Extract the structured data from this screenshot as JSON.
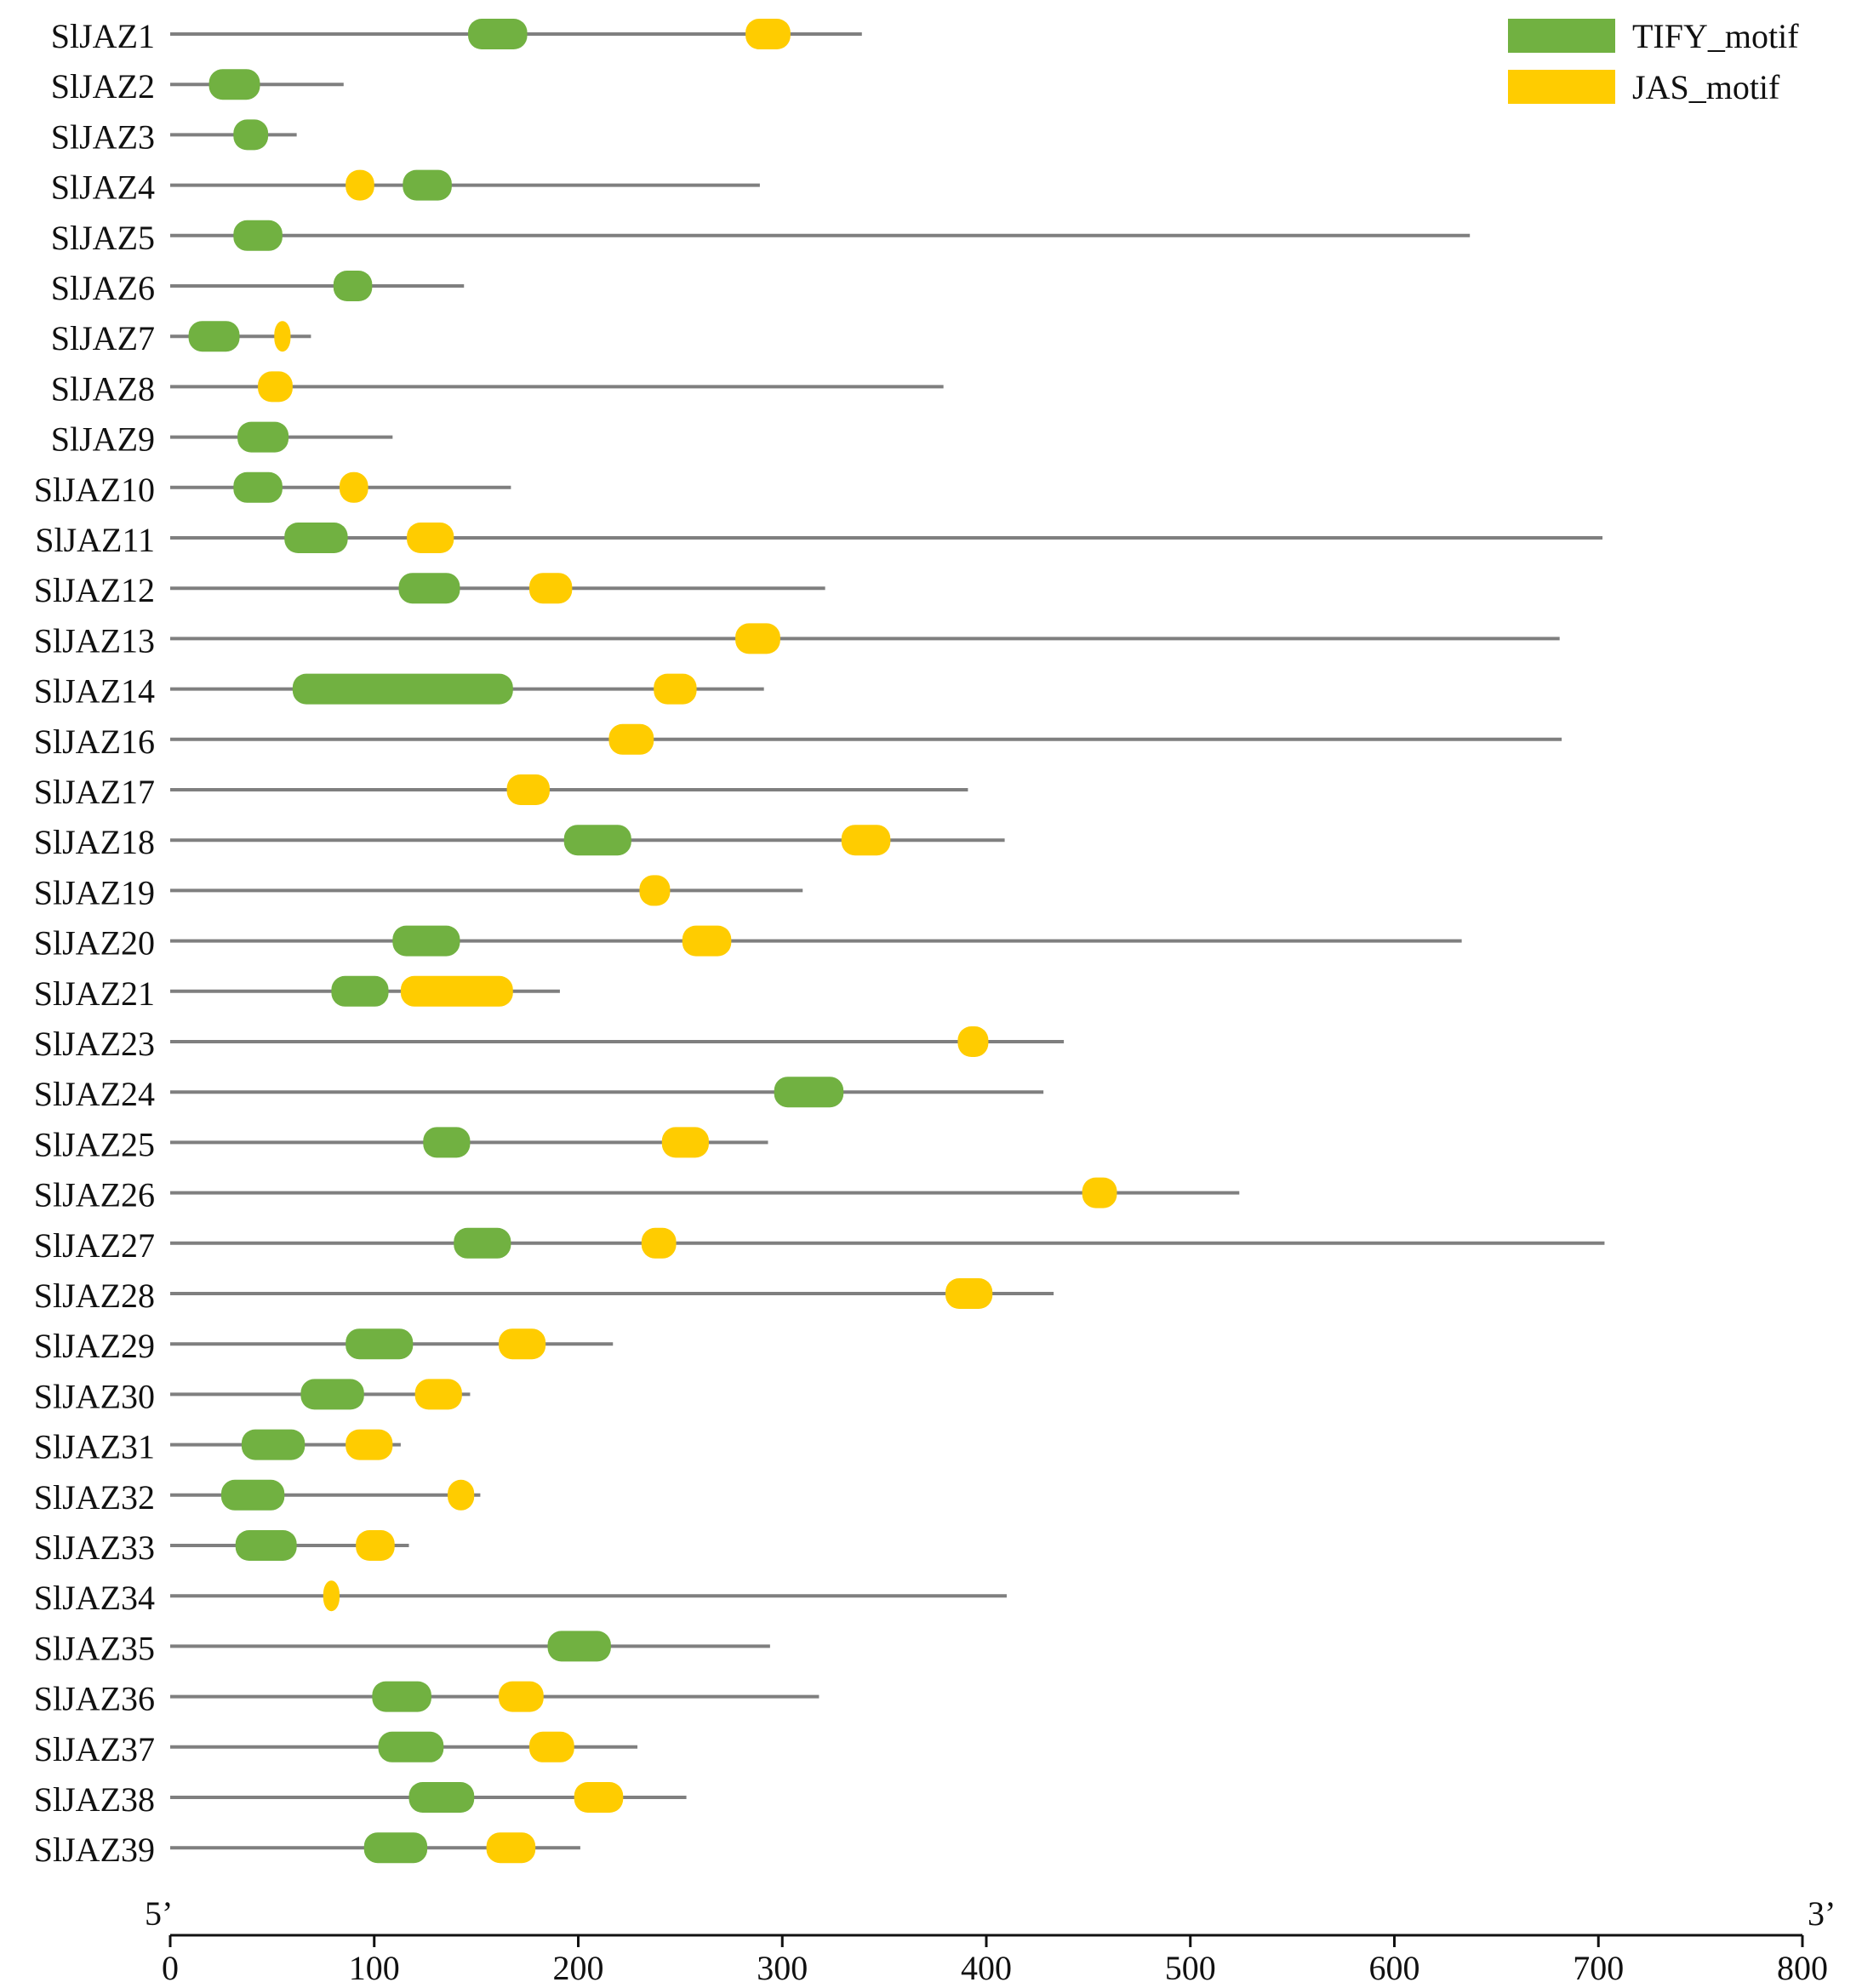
{
  "chart_data": {
    "type": "gene-structure",
    "xlim": [
      0,
      800
    ],
    "x_ticks": [
      0,
      100,
      200,
      300,
      400,
      500,
      600,
      700,
      800
    ],
    "end_labels": {
      "left": "5’",
      "right": "3’"
    },
    "legend": [
      {
        "key": "TIFY",
        "label": "TIFY_motif",
        "color": "#71b141"
      },
      {
        "key": "JAS",
        "label": "JAS_motif",
        "color": "#ffcc00"
      }
    ],
    "line_color": "#7f7f7f",
    "genes": [
      {
        "name": "SlJAZ1",
        "length": 339,
        "motifs": [
          {
            "type": "TIFY",
            "start": 146,
            "end": 175
          },
          {
            "type": "JAS",
            "start": 282,
            "end": 304
          }
        ]
      },
      {
        "name": "SlJAZ2",
        "length": 85,
        "motifs": [
          {
            "type": "TIFY",
            "start": 19,
            "end": 44
          }
        ]
      },
      {
        "name": "SlJAZ3",
        "length": 62,
        "motifs": [
          {
            "type": "TIFY",
            "start": 31,
            "end": 48
          }
        ]
      },
      {
        "name": "SlJAZ4",
        "length": 289,
        "motifs": [
          {
            "type": "JAS",
            "start": 86,
            "end": 100
          },
          {
            "type": "TIFY",
            "start": 114,
            "end": 138
          }
        ]
      },
      {
        "name": "SlJAZ5",
        "length": 637,
        "motifs": [
          {
            "type": "TIFY",
            "start": 31,
            "end": 55
          }
        ]
      },
      {
        "name": "SlJAZ6",
        "length": 144,
        "motifs": [
          {
            "type": "TIFY",
            "start": 80,
            "end": 99
          }
        ]
      },
      {
        "name": "SlJAZ7",
        "length": 69,
        "motifs": [
          {
            "type": "TIFY",
            "start": 9,
            "end": 34
          },
          {
            "type": "JAS",
            "start": 51,
            "end": 59
          }
        ]
      },
      {
        "name": "SlJAZ8",
        "length": 379,
        "motifs": [
          {
            "type": "JAS",
            "start": 43,
            "end": 60
          }
        ]
      },
      {
        "name": "SlJAZ9",
        "length": 109,
        "motifs": [
          {
            "type": "TIFY",
            "start": 33,
            "end": 58
          }
        ]
      },
      {
        "name": "SlJAZ10",
        "length": 167,
        "motifs": [
          {
            "type": "TIFY",
            "start": 31,
            "end": 55
          },
          {
            "type": "JAS",
            "start": 83,
            "end": 97
          }
        ]
      },
      {
        "name": "SlJAZ11",
        "length": 702,
        "motifs": [
          {
            "type": "TIFY",
            "start": 56,
            "end": 87
          },
          {
            "type": "JAS",
            "start": 116,
            "end": 139
          }
        ]
      },
      {
        "name": "SlJAZ12",
        "length": 321,
        "motifs": [
          {
            "type": "TIFY",
            "start": 112,
            "end": 142
          },
          {
            "type": "JAS",
            "start": 176,
            "end": 197
          }
        ]
      },
      {
        "name": "SlJAZ13",
        "length": 681,
        "motifs": [
          {
            "type": "JAS",
            "start": 277,
            "end": 299
          }
        ]
      },
      {
        "name": "SlJAZ14",
        "length": 291,
        "motifs": [
          {
            "type": "TIFY",
            "start": 60,
            "end": 168
          },
          {
            "type": "JAS",
            "start": 237,
            "end": 258
          }
        ]
      },
      {
        "name": "SlJAZ16",
        "length": 682,
        "motifs": [
          {
            "type": "JAS",
            "start": 215,
            "end": 237
          }
        ]
      },
      {
        "name": "SlJAZ17",
        "length": 391,
        "motifs": [
          {
            "type": "JAS",
            "start": 165,
            "end": 186
          }
        ]
      },
      {
        "name": "SlJAZ18",
        "length": 409,
        "motifs": [
          {
            "type": "TIFY",
            "start": 193,
            "end": 226
          },
          {
            "type": "JAS",
            "start": 329,
            "end": 353
          }
        ]
      },
      {
        "name": "SlJAZ19",
        "length": 310,
        "motifs": [
          {
            "type": "JAS",
            "start": 230,
            "end": 245
          }
        ]
      },
      {
        "name": "SlJAZ20",
        "length": 633,
        "motifs": [
          {
            "type": "TIFY",
            "start": 109,
            "end": 142
          },
          {
            "type": "JAS",
            "start": 251,
            "end": 275
          }
        ]
      },
      {
        "name": "SlJAZ21",
        "length": 191,
        "motifs": [
          {
            "type": "TIFY",
            "start": 79,
            "end": 107
          },
          {
            "type": "JAS",
            "start": 113,
            "end": 168
          }
        ]
      },
      {
        "name": "SlJAZ23",
        "length": 438,
        "motifs": [
          {
            "type": "JAS",
            "start": 386,
            "end": 401
          }
        ]
      },
      {
        "name": "SlJAZ24",
        "length": 428,
        "motifs": [
          {
            "type": "TIFY",
            "start": 296,
            "end": 330
          }
        ]
      },
      {
        "name": "SlJAZ25",
        "length": 293,
        "motifs": [
          {
            "type": "TIFY",
            "start": 124,
            "end": 147
          },
          {
            "type": "JAS",
            "start": 241,
            "end": 264
          }
        ]
      },
      {
        "name": "SlJAZ26",
        "length": 524,
        "motifs": [
          {
            "type": "JAS",
            "start": 447,
            "end": 464
          }
        ]
      },
      {
        "name": "SlJAZ27",
        "length": 703,
        "motifs": [
          {
            "type": "TIFY",
            "start": 139,
            "end": 167
          },
          {
            "type": "JAS",
            "start": 231,
            "end": 248
          }
        ]
      },
      {
        "name": "SlJAZ28",
        "length": 433,
        "motifs": [
          {
            "type": "JAS",
            "start": 380,
            "end": 403
          }
        ]
      },
      {
        "name": "SlJAZ29",
        "length": 217,
        "motifs": [
          {
            "type": "TIFY",
            "start": 86,
            "end": 119
          },
          {
            "type": "JAS",
            "start": 161,
            "end": 184
          }
        ]
      },
      {
        "name": "SlJAZ30",
        "length": 147,
        "motifs": [
          {
            "type": "TIFY",
            "start": 64,
            "end": 95
          },
          {
            "type": "JAS",
            "start": 120,
            "end": 143
          }
        ]
      },
      {
        "name": "SlJAZ31",
        "length": 113,
        "motifs": [
          {
            "type": "TIFY",
            "start": 35,
            "end": 66
          },
          {
            "type": "JAS",
            "start": 86,
            "end": 109
          }
        ]
      },
      {
        "name": "SlJAZ32",
        "length": 152,
        "motifs": [
          {
            "type": "TIFY",
            "start": 25,
            "end": 56
          },
          {
            "type": "JAS",
            "start": 136,
            "end": 149
          }
        ]
      },
      {
        "name": "SlJAZ33",
        "length": 117,
        "motifs": [
          {
            "type": "TIFY",
            "start": 32,
            "end": 62
          },
          {
            "type": "JAS",
            "start": 91,
            "end": 110
          }
        ]
      },
      {
        "name": "SlJAZ34",
        "length": 410,
        "motifs": [
          {
            "type": "JAS",
            "start": 75,
            "end": 83
          }
        ]
      },
      {
        "name": "SlJAZ35",
        "length": 294,
        "motifs": [
          {
            "type": "TIFY",
            "start": 185,
            "end": 216
          }
        ]
      },
      {
        "name": "SlJAZ36",
        "length": 318,
        "motifs": [
          {
            "type": "TIFY",
            "start": 99,
            "end": 128
          },
          {
            "type": "JAS",
            "start": 161,
            "end": 183
          }
        ]
      },
      {
        "name": "SlJAZ37",
        "length": 229,
        "motifs": [
          {
            "type": "TIFY",
            "start": 102,
            "end": 134
          },
          {
            "type": "JAS",
            "start": 176,
            "end": 198
          }
        ]
      },
      {
        "name": "SlJAZ38",
        "length": 253,
        "motifs": [
          {
            "type": "TIFY",
            "start": 117,
            "end": 149
          },
          {
            "type": "JAS",
            "start": 198,
            "end": 222
          }
        ]
      },
      {
        "name": "SlJAZ39",
        "length": 201,
        "motifs": [
          {
            "type": "TIFY",
            "start": 95,
            "end": 126
          },
          {
            "type": "JAS",
            "start": 155,
            "end": 179
          }
        ]
      }
    ]
  }
}
